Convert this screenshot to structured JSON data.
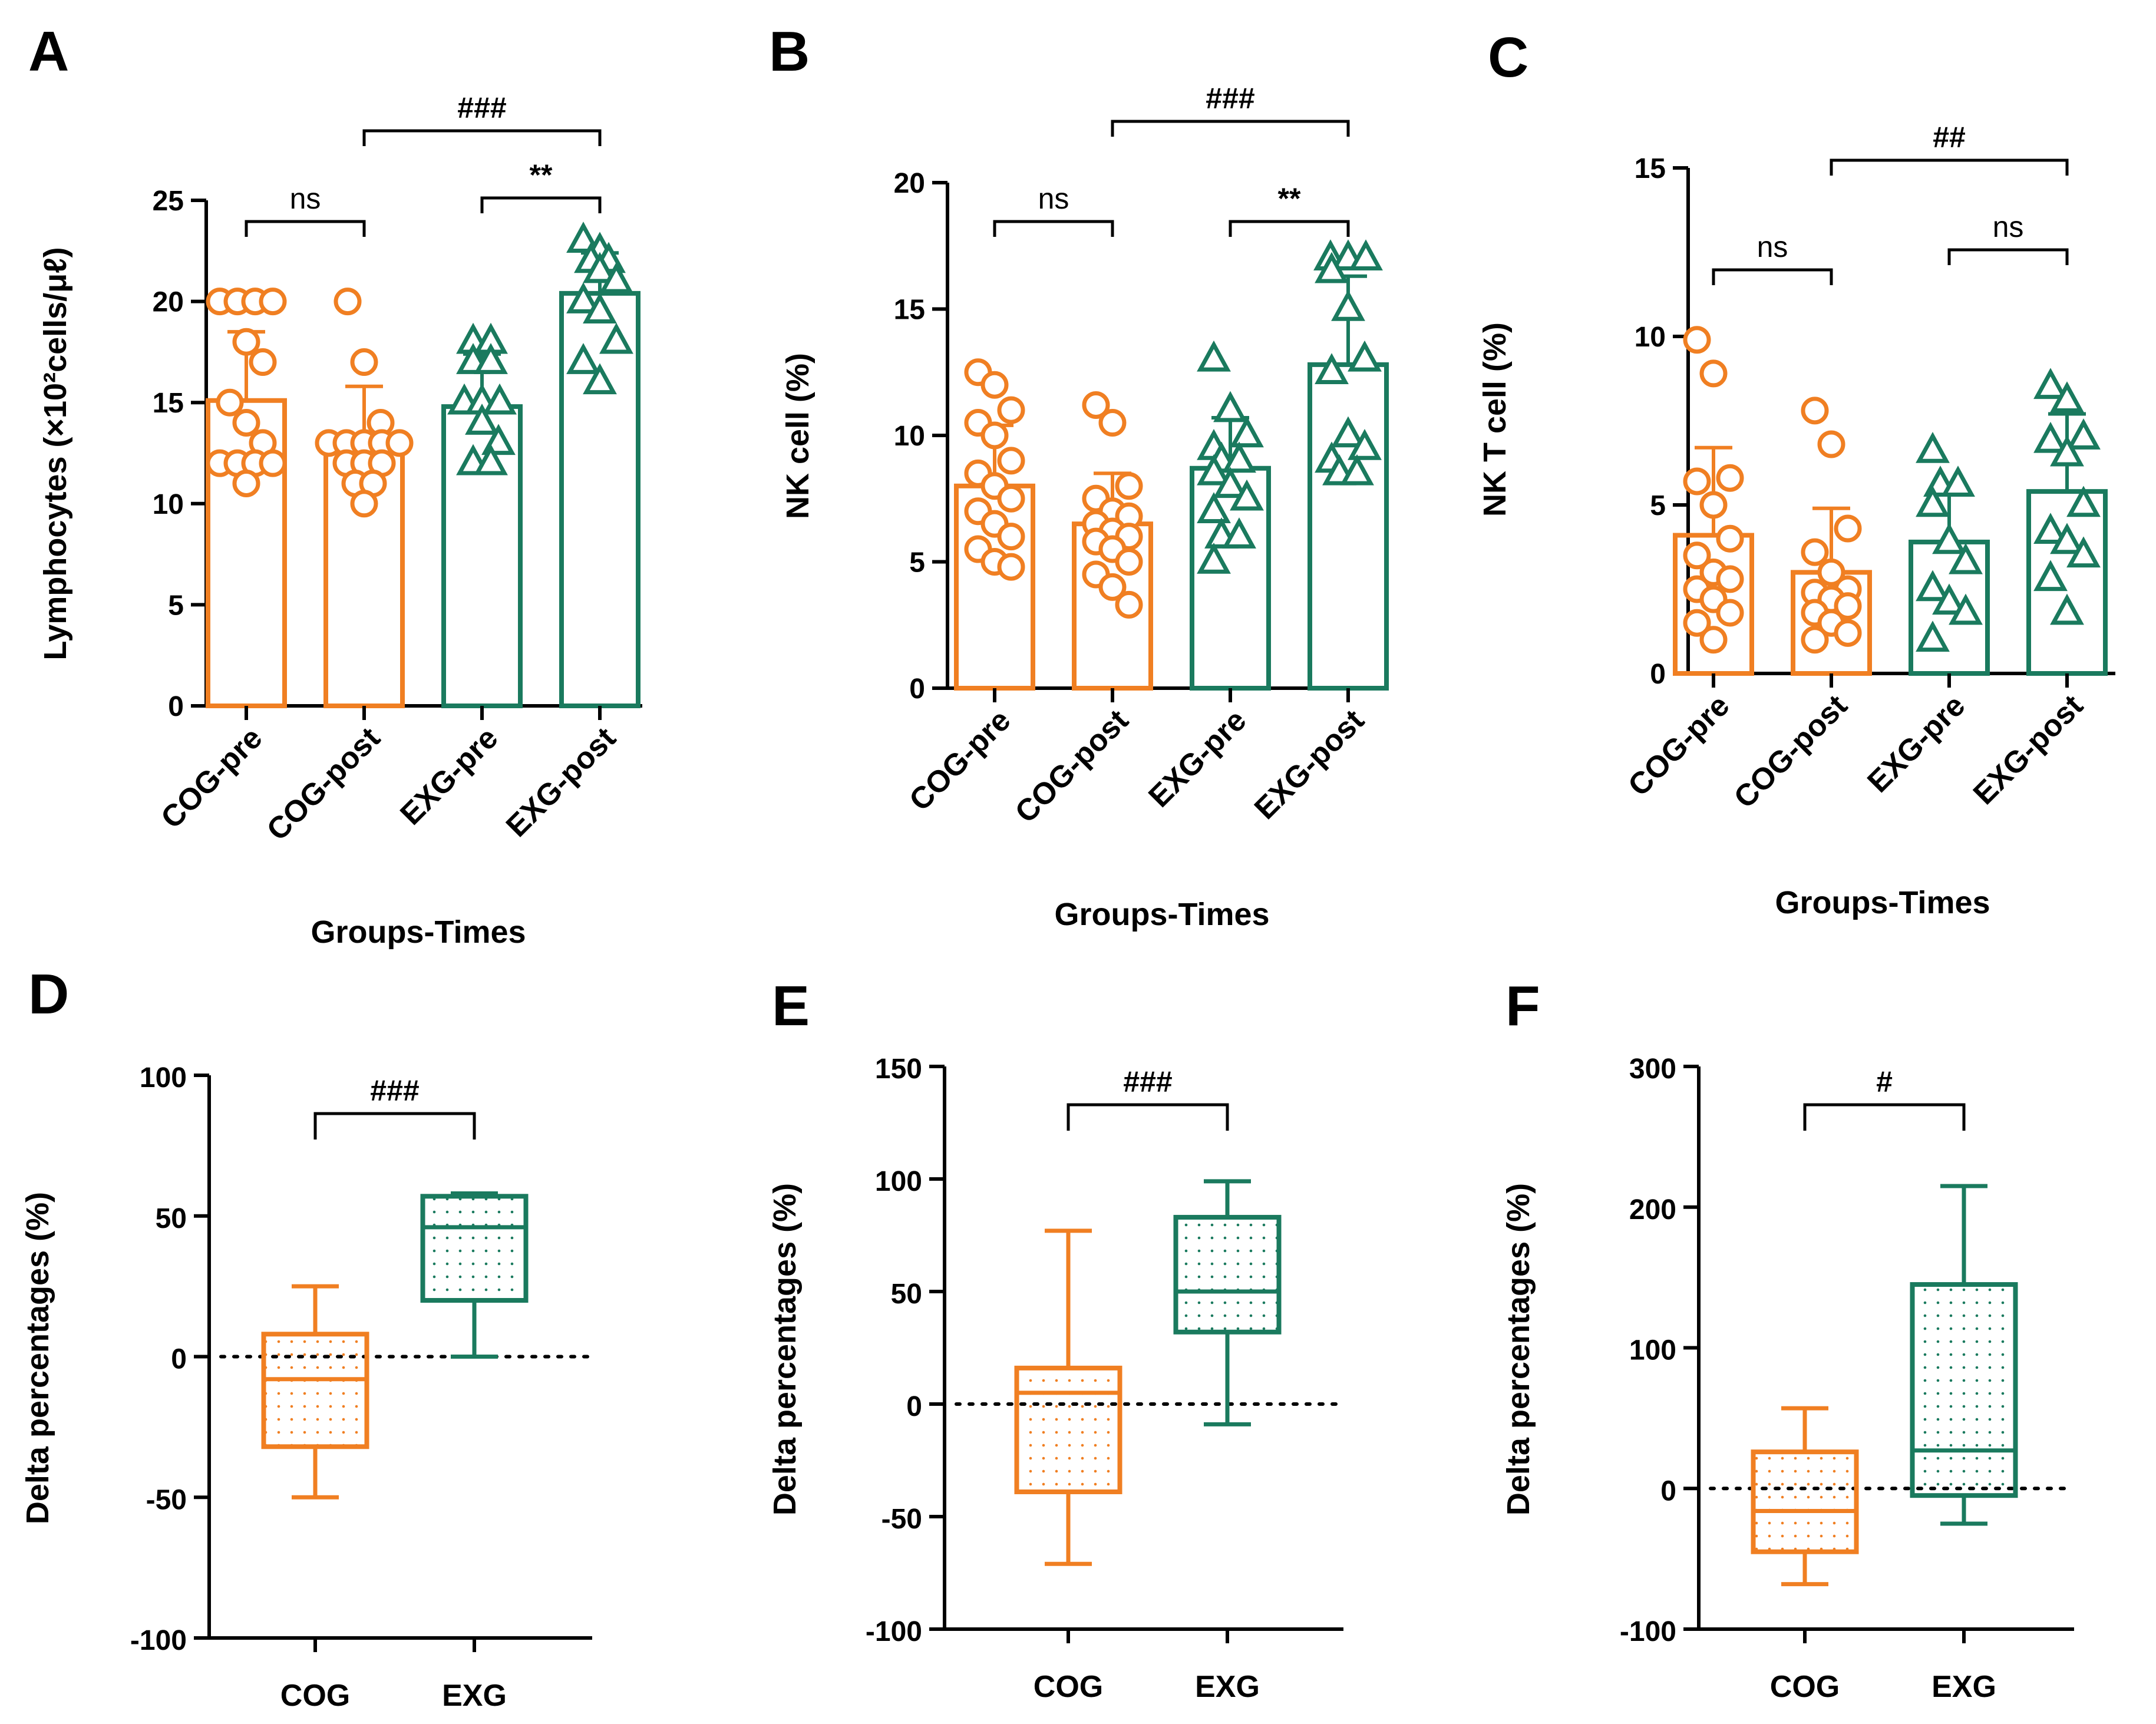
{
  "colors": {
    "cog": "#f07f22",
    "exg": "#1a7a5e",
    "axis": "#000000"
  },
  "chart_data": [
    {
      "panel": "A",
      "type": "bar",
      "ylabel": "Lymphocytes (×10²cells/μℓ)",
      "xlabel": "Groups-Times",
      "ylim": [
        0,
        25
      ],
      "yticks": [
        0,
        5,
        10,
        15,
        20,
        25
      ],
      "categories": [
        "COG-pre",
        "COG-post",
        "EXG-pre",
        "EXG-post"
      ],
      "means": [
        15.1,
        12.9,
        14.8,
        20.4
      ],
      "sd": [
        3.4,
        2.9,
        2.6,
        2.0
      ],
      "points": [
        [
          20,
          20,
          20,
          20,
          18,
          17,
          15,
          14,
          13,
          12,
          12,
          12,
          12,
          11
        ],
        [
          20,
          17,
          14,
          13,
          13,
          13,
          13,
          13,
          12,
          12,
          12,
          11,
          11,
          10
        ],
        [
          18,
          18,
          17,
          17,
          15,
          15,
          15,
          14,
          13,
          12,
          12
        ],
        [
          23,
          22.5,
          22,
          22,
          21.5,
          21,
          20,
          19.5,
          18,
          17,
          16
        ]
      ],
      "brackets": [
        {
          "from": 0,
          "to": 1,
          "label": "ns",
          "level": 1
        },
        {
          "from": 2,
          "to": 3,
          "label": "**",
          "level": 1
        },
        {
          "from": 1,
          "to": 3,
          "label": "###",
          "level": 2
        }
      ]
    },
    {
      "panel": "B",
      "type": "bar",
      "ylabel": "NK cell (%)",
      "xlabel": "Groups-Times",
      "ylim": [
        0,
        20
      ],
      "yticks": [
        0,
        5,
        10,
        15,
        20
      ],
      "categories": [
        "COG-pre",
        "COG-post",
        "EXG-pre",
        "EXG-post"
      ],
      "means": [
        8.0,
        6.5,
        8.7,
        12.8
      ],
      "sd": [
        2.4,
        2.0,
        2.0,
        3.5
      ],
      "points": [
        [
          12.5,
          12,
          11,
          10.5,
          10,
          9,
          8.5,
          8,
          7.5,
          7,
          6.5,
          6,
          5.5,
          5,
          4.8
        ],
        [
          11.2,
          10.5,
          8,
          7.5,
          7,
          6.8,
          6.5,
          6.2,
          6,
          5.8,
          5.5,
          5,
          4.5,
          4,
          3.3
        ],
        [
          13,
          11,
          10,
          9.5,
          9,
          9,
          8.5,
          8,
          7.5,
          7,
          6,
          6,
          5
        ],
        [
          17,
          17,
          17,
          16.5,
          15,
          13,
          12.5,
          10,
          9.5,
          9,
          8.5,
          8.5
        ]
      ],
      "brackets": [
        {
          "from": 0,
          "to": 1,
          "label": "ns",
          "level": 1
        },
        {
          "from": 2,
          "to": 3,
          "label": "**",
          "level": 1
        },
        {
          "from": 1,
          "to": 3,
          "label": "###",
          "level": 2
        }
      ]
    },
    {
      "panel": "C",
      "type": "bar",
      "ylabel": "NK T cell (%)",
      "xlabel": "Groups-Times",
      "ylim": [
        0,
        15
      ],
      "yticks": [
        0,
        5,
        10,
        15
      ],
      "categories": [
        "COG-pre",
        "COG-post",
        "EXG-pre",
        "EXG-post"
      ],
      "means": [
        4.1,
        3.0,
        3.9,
        5.4
      ],
      "sd": [
        2.6,
        1.9,
        1.6,
        2.3
      ],
      "points": [
        [
          9.9,
          8.9,
          5.8,
          5.7,
          5.0,
          4.0,
          3.5,
          3.0,
          2.8,
          2.5,
          2.2,
          1.8,
          1.5,
          1.0
        ],
        [
          7.8,
          6.8,
          4.3,
          3.6,
          3.0,
          2.5,
          2.4,
          2.2,
          2.0,
          1.8,
          1.5,
          1.2,
          1.0
        ],
        [
          6.6,
          5.6,
          5.6,
          5.0,
          3.9,
          3.3,
          2.5,
          2.1,
          1.8,
          1.0
        ],
        [
          8.5,
          8.1,
          7.0,
          6.9,
          6.5,
          5.0,
          4.2,
          3.9,
          3.5,
          2.8,
          1.8
        ]
      ],
      "brackets": [
        {
          "from": 0,
          "to": 1,
          "label": "ns",
          "level": 1
        },
        {
          "from": 2,
          "to": 3,
          "label": "ns",
          "level": 1
        },
        {
          "from": 1,
          "to": 3,
          "label": "##",
          "level": 2
        }
      ]
    },
    {
      "panel": "D",
      "type": "box",
      "ylabel": "Delta percentages (%)",
      "ylim": [
        -100,
        100
      ],
      "yticks": [
        -100,
        -50,
        0,
        50,
        100
      ],
      "categories": [
        "COG",
        "EXG"
      ],
      "boxes": [
        {
          "min": -50,
          "q1": -32,
          "median": -8,
          "q3": 8,
          "max": 25
        },
        {
          "min": 0,
          "q1": 20,
          "median": 46,
          "q3": 57,
          "max": 58
        }
      ],
      "bracket_label": "###"
    },
    {
      "panel": "E",
      "type": "box",
      "ylabel": "Delta percentages (%)",
      "ylim": [
        -100,
        150
      ],
      "yticks": [
        -100,
        -50,
        0,
        50,
        100,
        150
      ],
      "categories": [
        "COG",
        "EXG"
      ],
      "boxes": [
        {
          "min": -71,
          "q1": -39,
          "median": 5,
          "q3": 16,
          "max": 77
        },
        {
          "min": -9,
          "q1": 32,
          "median": 50,
          "q3": 83,
          "max": 99
        }
      ],
      "bracket_label": "###"
    },
    {
      "panel": "F",
      "type": "box",
      "ylabel": "Delta percentages (%)",
      "ylim": [
        -100,
        300
      ],
      "yticks": [
        -100,
        0,
        100,
        200,
        300
      ],
      "categories": [
        "COG",
        "EXG"
      ],
      "boxes": [
        {
          "min": -68,
          "q1": -45,
          "median": -16,
          "q3": 26,
          "max": 57
        },
        {
          "min": -25,
          "q1": -5,
          "median": 27,
          "q3": 145,
          "max": 215
        }
      ],
      "bracket_label": "#"
    }
  ]
}
